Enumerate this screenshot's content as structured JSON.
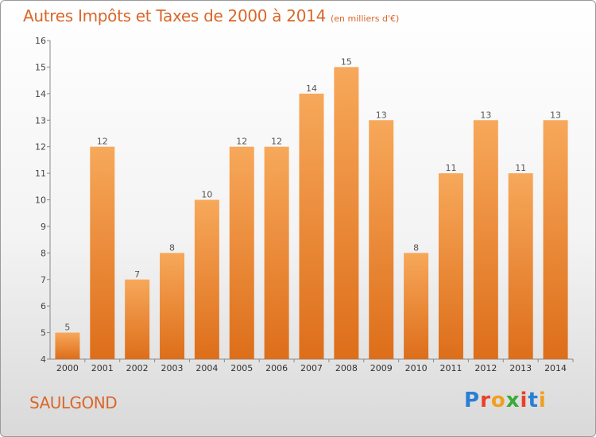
{
  "header": {
    "title": "Autres Impôts et Taxes de 2000 à 2014",
    "unit": "(en milliers d'€)"
  },
  "commune": "SAULGOND",
  "logo": {
    "text": "Proxiti",
    "colors": [
      "#2a7fd4",
      "#e8402a",
      "#f0a020",
      "#3aaa3a",
      "#e8402a",
      "#2a7fd4",
      "#f0a020"
    ]
  },
  "chart_data": {
    "type": "bar",
    "categories": [
      "2000",
      "2001",
      "2002",
      "2003",
      "2004",
      "2005",
      "2006",
      "2007",
      "2008",
      "2009",
      "2010",
      "2011",
      "2012",
      "2013",
      "2014"
    ],
    "values": [
      5,
      12,
      7,
      8,
      10,
      12,
      12,
      14,
      15,
      13,
      8,
      11,
      13,
      11,
      13
    ],
    "ylim": [
      4,
      16
    ],
    "yticks": [
      4,
      5,
      6,
      7,
      8,
      9,
      10,
      11,
      12,
      13,
      14,
      15,
      16
    ],
    "grid": false,
    "bar_color_top": "#f7a85a",
    "bar_color_bottom": "#dd6e1a",
    "label_color": "#555555"
  }
}
